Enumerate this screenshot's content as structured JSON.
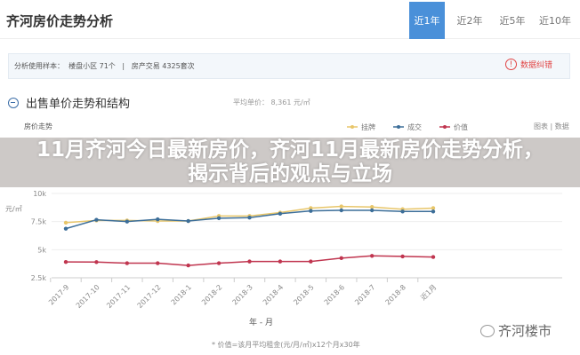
{
  "header": {
    "title": "齐河房价走势分析",
    "tabs": [
      {
        "label": "近1年",
        "active": true
      },
      {
        "label": "近2年"
      },
      {
        "label": "近5年"
      },
      {
        "label": "近10年"
      }
    ]
  },
  "sample": {
    "text": "分析使用样本：  楼盘小区 71个   |   房产交易 4325套次",
    "report": "数据纠错",
    "report_icon": "exclamation-circle-icon"
  },
  "section": {
    "title": "出售单价走势和结构",
    "avg": "平均单价： 8,361 元/㎡",
    "trend_label": "房价走势",
    "toggle": "图表 | 数据"
  },
  "banner": {
    "text": "11月齐河今日最新房价，齐河11月最新房价走势分析，揭示背后的观点与立场"
  },
  "chart_data": {
    "type": "line",
    "ylabel": "元/㎡",
    "xlabel": "年 - 月",
    "y_ticks": [
      "2.5k",
      "5k",
      "7.5k",
      "10k"
    ],
    "ylim": [
      2500,
      10000
    ],
    "categories": [
      "2017-9",
      "2017-10",
      "2017-11",
      "2017-12",
      "2018-1",
      "2018-2",
      "2018-3",
      "2018-4",
      "2018-5",
      "2018-6",
      "2018-7",
      "2018-8",
      "近1月"
    ],
    "series": [
      {
        "name": "挂牌",
        "color": "#e8c66a",
        "values": [
          7400,
          7600,
          7600,
          7550,
          7550,
          8000,
          8000,
          8300,
          8700,
          8850,
          8800,
          8600,
          8700
        ]
      },
      {
        "name": "成交",
        "color": "#3c6e99",
        "values": [
          6870,
          7660,
          7500,
          7700,
          7550,
          7800,
          7850,
          8200,
          8450,
          8500,
          8500,
          8400,
          8400
        ]
      },
      {
        "name": "价值",
        "color": "#c0354f",
        "values": [
          3910,
          3900,
          3800,
          3800,
          3600,
          3800,
          3950,
          3950,
          3950,
          4250,
          4450,
          4400,
          4350
        ]
      }
    ],
    "grid": true,
    "legend": "top-right"
  },
  "footer": {
    "note": "* 价值=该月平均租金(元/月/㎡)x12个月x30年",
    "watermark": "齐河楼市"
  }
}
